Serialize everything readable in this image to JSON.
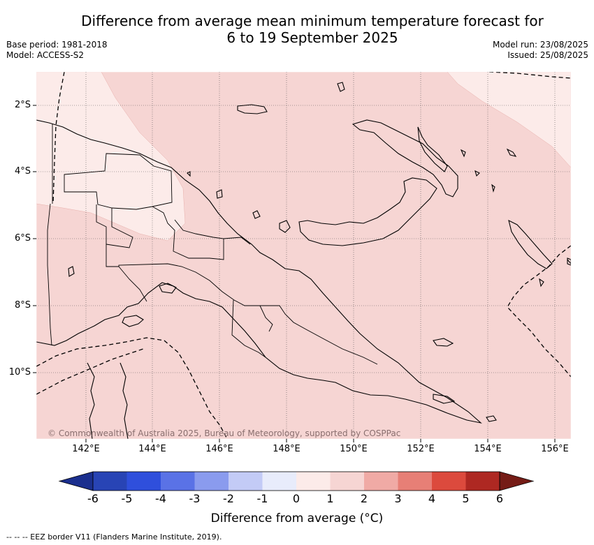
{
  "title_line1": "Difference from average mean minimum temperature forecast for",
  "title_line2": "6 to 19 September 2025",
  "base_period": "Base period: 1981-2018",
  "model": "Model: ACCESS-S2",
  "model_run": "Model run: 23/08/2025",
  "issued": "Issued: 25/08/2025",
  "lat_ticks": [
    "2°S",
    "4°S",
    "6°S",
    "8°S",
    "10°S"
  ],
  "lon_ticks": [
    "142°E",
    "144°E",
    "146°E",
    "148°E",
    "150°E",
    "152°E",
    "154°E",
    "156°E"
  ],
  "copyright": "© Commonwealth of Australia 2025, Bureau of Meteorology, supported by COSPPac",
  "colorbar": {
    "title": "Difference from average (°C)",
    "ticks": [
      "-6",
      "-5",
      "-4",
      "-3",
      "-2",
      "-1",
      "0",
      "1",
      "2",
      "3",
      "4",
      "5",
      "6"
    ],
    "colors": [
      "#1b2f8e",
      "#2844b5",
      "#2f4fdc",
      "#5a72e6",
      "#8a9bee",
      "#c3cbf6",
      "#e8ecfb",
      "#fcebe9",
      "#f6d5d3",
      "#f0aaa5",
      "#e77f76",
      "#dc4a3d",
      "#ae2822",
      "#751c16"
    ]
  },
  "footnote": "--  --  -- EEZ border V11 (Flanders Marine Institute, 2019).",
  "map_fill": {
    "band_1_2": "#f6d5d3",
    "band_0_1": "#fcebe9"
  }
}
